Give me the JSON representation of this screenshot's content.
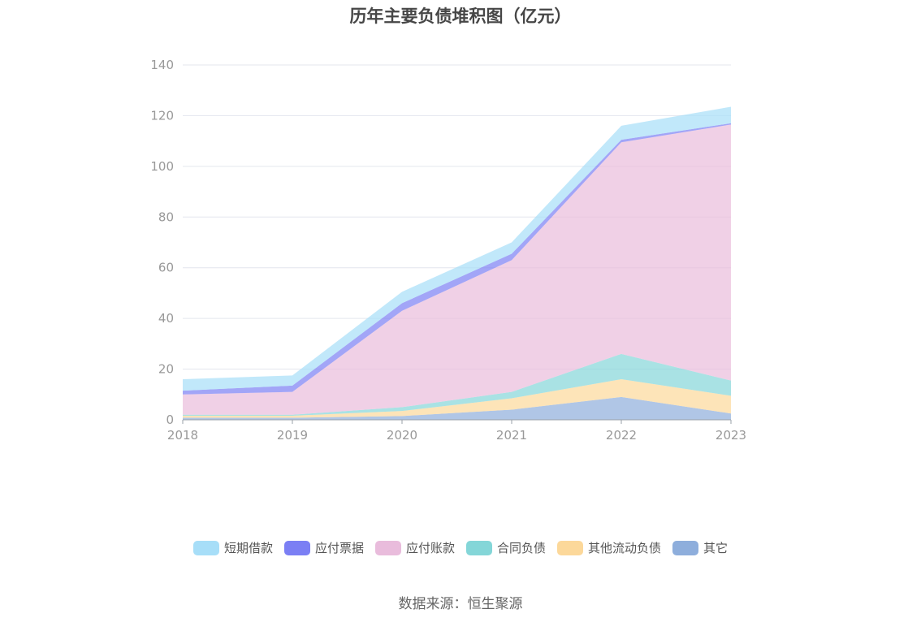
{
  "chart_data": {
    "type": "area",
    "title": "历年主要负债堆积图（亿元）",
    "categories": [
      "2018",
      "2019",
      "2020",
      "2021",
      "2022",
      "2023"
    ],
    "ylim": [
      0,
      140
    ],
    "yticks": [
      0,
      20,
      40,
      60,
      80,
      100,
      120,
      140
    ],
    "stacked": true,
    "grid": true,
    "legend_position": "bottom",
    "series": [
      {
        "name": "其它",
        "color": "#8eaedc",
        "values": [
          0.8,
          0.8,
          1.5,
          4.0,
          9.0,
          2.5
        ]
      },
      {
        "name": "其他流动负债",
        "color": "#fcd89a",
        "values": [
          0.8,
          0.8,
          2.0,
          4.5,
          7.0,
          7.0
        ]
      },
      {
        "name": "合同负债",
        "color": "#84d6d8",
        "values": [
          0.4,
          0.4,
          1.5,
          2.5,
          10.0,
          6.0
        ]
      },
      {
        "name": "应付账款",
        "color": "#e9bcdc",
        "values": [
          8.0,
          9.0,
          38.0,
          52.0,
          83.5,
          101.0
        ]
      },
      {
        "name": "应付票据",
        "color": "#7b7ff4",
        "values": [
          1.5,
          2.5,
          3.0,
          2.5,
          1.0,
          0.5
        ]
      },
      {
        "name": "短期借款",
        "color": "#a7def8",
        "values": [
          4.5,
          4.0,
          4.5,
          4.5,
          5.5,
          6.5
        ]
      }
    ]
  },
  "legend": {
    "items": [
      {
        "name": "短期借款",
        "color": "#a7def8"
      },
      {
        "name": "应付票据",
        "color": "#7b7ff4"
      },
      {
        "name": "应付账款",
        "color": "#e9bcdc"
      },
      {
        "name": "合同负债",
        "color": "#84d6d8"
      },
      {
        "name": "其他流动负债",
        "color": "#fcd89a"
      },
      {
        "name": "其它",
        "color": "#8eaedc"
      }
    ]
  },
  "source": "数据来源：恒生聚源"
}
